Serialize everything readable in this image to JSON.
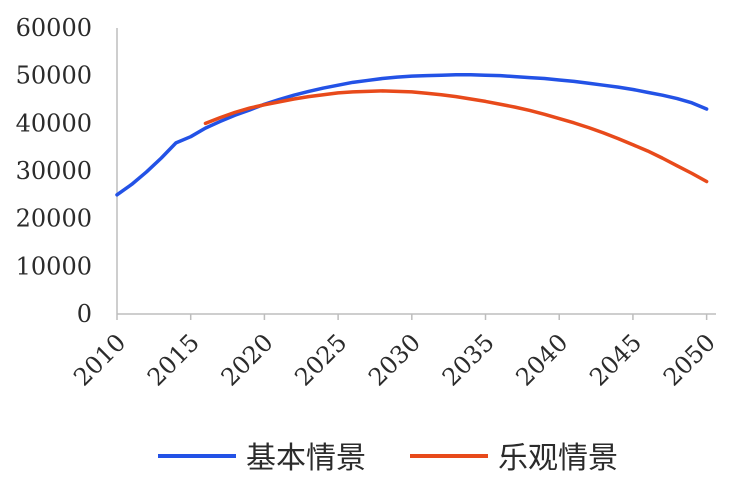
{
  "chart_data": {
    "type": "line",
    "title": "",
    "xlabel": "",
    "ylabel": "",
    "xlim": [
      2010,
      2050.5
    ],
    "ylim": [
      0,
      60000
    ],
    "x_ticks": [
      2010,
      2015,
      2020,
      2025,
      2030,
      2035,
      2040,
      2045,
      2050
    ],
    "y_ticks": [
      0,
      10000,
      20000,
      30000,
      40000,
      50000,
      60000
    ],
    "x_tick_labels": [
      "2010",
      "2015",
      "2020",
      "2025",
      "2030",
      "2035",
      "2040",
      "2045",
      "2050"
    ],
    "y_tick_labels": [
      "0",
      "10000",
      "20000",
      "30000",
      "40000",
      "50000",
      "60000"
    ],
    "grid": false,
    "legend_position": "bottom",
    "series": [
      {
        "name": "基本情景",
        "color": "#2352e6",
        "x": [
          2010,
          2011,
          2012,
          2013,
          2014,
          2015,
          2016,
          2017,
          2018,
          2019,
          2020,
          2021,
          2022,
          2023,
          2024,
          2025,
          2026,
          2027,
          2028,
          2029,
          2030,
          2031,
          2032,
          2033,
          2034,
          2035,
          2036,
          2037,
          2038,
          2039,
          2040,
          2041,
          2042,
          2043,
          2044,
          2045,
          2046,
          2047,
          2048,
          2049,
          2050
        ],
        "values": [
          25000,
          27200,
          29800,
          32700,
          35900,
          37200,
          39000,
          40400,
          41700,
          42800,
          44000,
          45000,
          45900,
          46700,
          47400,
          48000,
          48600,
          49000,
          49400,
          49700,
          49900,
          50000,
          50100,
          50200,
          50200,
          50100,
          50000,
          49800,
          49600,
          49400,
          49100,
          48800,
          48400,
          48000,
          47600,
          47100,
          46500,
          45900,
          45200,
          44300,
          43000
        ]
      },
      {
        "name": "乐观情景",
        "color": "#e84a1b",
        "x": [
          2016,
          2017,
          2018,
          2019,
          2020,
          2021,
          2022,
          2023,
          2024,
          2025,
          2026,
          2027,
          2028,
          2029,
          2030,
          2031,
          2032,
          2033,
          2034,
          2035,
          2036,
          2037,
          2038,
          2039,
          2040,
          2041,
          2042,
          2043,
          2044,
          2045,
          2046,
          2047,
          2048,
          2049,
          2050
        ],
        "values": [
          40000,
          41200,
          42300,
          43200,
          43900,
          44500,
          45100,
          45600,
          46000,
          46400,
          46600,
          46700,
          46800,
          46700,
          46600,
          46300,
          46000,
          45600,
          45100,
          44600,
          44000,
          43400,
          42700,
          41900,
          41000,
          40100,
          39100,
          38000,
          36800,
          35500,
          34200,
          32700,
          31100,
          29500,
          27800
        ]
      }
    ]
  }
}
